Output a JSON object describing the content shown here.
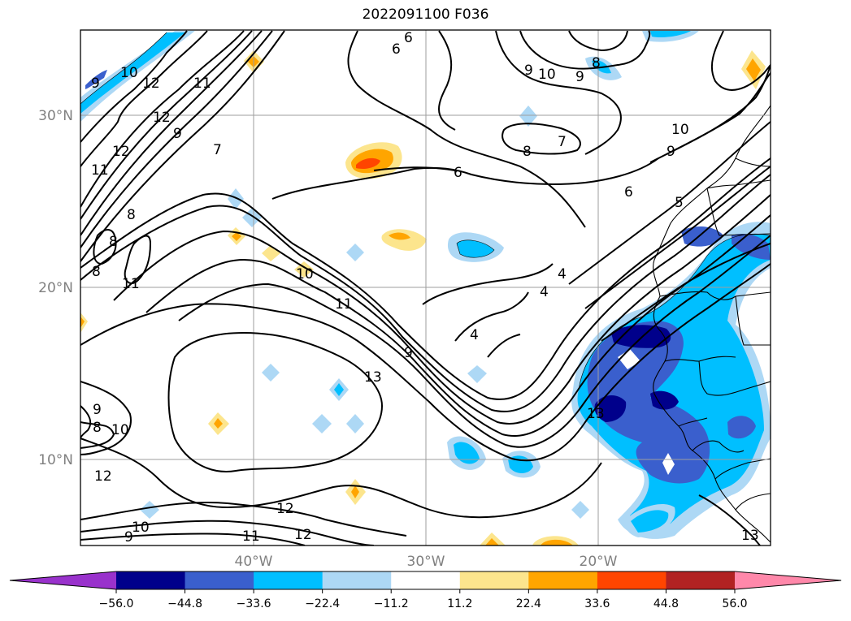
{
  "title": "2022091100 F036",
  "map": {
    "lat_labels": [
      "30°N",
      "20°N",
      "10°N"
    ],
    "lon_labels": [
      "40°W",
      "30°W",
      "20°W"
    ],
    "contour_labels": [
      "6",
      "6",
      "10",
      "9",
      "9",
      "8",
      "10",
      "12",
      "11",
      "12",
      "9",
      "12",
      "11",
      "8",
      "8",
      "8",
      "7",
      "9",
      "8",
      "7",
      "10",
      "9",
      "6",
      "6",
      "5",
      "4",
      "4",
      "4",
      "10",
      "11",
      "11",
      "9",
      "13",
      "9",
      "10",
      "8",
      "13",
      "12",
      "12",
      "11",
      "10",
      "9",
      "8",
      "13"
    ],
    "colors": {
      "cool": [
        "#9932cc",
        "#00008b",
        "#3a5fcd",
        "#00bfff",
        "#add8f5"
      ],
      "warm": [
        "#fce58d",
        "#ffa500",
        "#ff4500",
        "#b22222",
        "#ff88aa"
      ]
    }
  },
  "colorbar": {
    "ticks": [
      "−56.0",
      "−44.8",
      "−33.6",
      "−22.4",
      "−11.2",
      "11.2",
      "22.4",
      "33.6",
      "44.8",
      "56.0"
    ],
    "colors": [
      "#9932cc",
      "#00008b",
      "#3a5fcd",
      "#00bfff",
      "#add8f5",
      "#ffffff",
      "#fce58d",
      "#ffa500",
      "#ff4500",
      "#b22222",
      "#ff88aa"
    ]
  }
}
